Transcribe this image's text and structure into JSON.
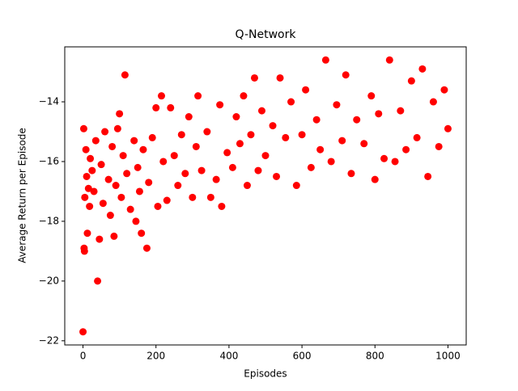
{
  "chart_data": {
    "type": "scatter",
    "title": "Q-Network",
    "x_label": "Episodes",
    "y_label": "Average Return per Episode",
    "color": "#ff0000",
    "x": [
      0,
      2,
      3,
      4,
      5,
      8,
      10,
      12,
      15,
      18,
      20,
      25,
      30,
      35,
      40,
      45,
      50,
      55,
      60,
      70,
      75,
      80,
      85,
      90,
      95,
      100,
      105,
      110,
      115,
      120,
      130,
      140,
      145,
      150,
      155,
      160,
      165,
      175,
      180,
      190,
      200,
      205,
      215,
      220,
      230,
      240,
      250,
      260,
      270,
      280,
      290,
      300,
      310,
      315,
      325,
      340,
      350,
      365,
      375,
      380,
      395,
      410,
      420,
      430,
      440,
      450,
      460,
      470,
      480,
      490,
      500,
      520,
      530,
      540,
      555,
      570,
      585,
      600,
      610,
      625,
      640,
      650,
      665,
      680,
      695,
      710,
      720,
      735,
      750,
      770,
      790,
      800,
      810,
      825,
      840,
      855,
      870,
      885,
      900,
      915,
      930,
      945,
      960,
      975,
      990,
      1000
    ],
    "y": [
      -21.7,
      -14.9,
      -18.9,
      -19.0,
      -17.2,
      -15.6,
      -16.5,
      -18.4,
      -16.9,
      -17.5,
      -15.9,
      -16.3,
      -17.0,
      -15.3,
      -20.0,
      -18.6,
      -16.1,
      -17.4,
      -15.0,
      -16.6,
      -17.8,
      -15.5,
      -18.5,
      -16.8,
      -14.9,
      -14.4,
      -17.2,
      -15.8,
      -13.1,
      -16.4,
      -17.6,
      -15.3,
      -18.0,
      -16.2,
      -17.0,
      -18.4,
      -15.6,
      -18.9,
      -16.7,
      -15.2,
      -14.2,
      -17.5,
      -13.8,
      -16.0,
      -17.3,
      -14.2,
      -15.8,
      -16.8,
      -15.1,
      -16.4,
      -14.5,
      -17.2,
      -15.5,
      -13.8,
      -16.3,
      -15.0,
      -17.2,
      -16.6,
      -14.1,
      -17.5,
      -15.7,
      -16.2,
      -14.5,
      -15.4,
      -13.8,
      -16.8,
      -15.1,
      -13.2,
      -16.3,
      -14.3,
      -15.8,
      -14.8,
      -16.5,
      -13.2,
      -15.2,
      -14.0,
      -16.8,
      -15.1,
      -13.6,
      -16.2,
      -14.6,
      -15.6,
      -12.6,
      -16.0,
      -14.1,
      -15.3,
      -13.1,
      -16.4,
      -14.6,
      -15.4,
      -13.8,
      -16.6,
      -14.4,
      -15.9,
      -12.6,
      -16.0,
      -14.3,
      -15.6,
      -13.3,
      -15.2,
      -12.9,
      -16.5,
      -14.0,
      -15.5,
      -13.6,
      -14.9
    ],
    "xlim": [
      -50,
      1050
    ],
    "ylim": [
      -22.14,
      -12.16
    ],
    "xticks": [
      0,
      200,
      400,
      600,
      800,
      1000
    ],
    "yticks": [
      {
        "value": -22,
        "label": "−22"
      },
      {
        "value": -20,
        "label": "−20"
      },
      {
        "value": -18,
        "label": "−18"
      },
      {
        "value": -16,
        "label": "−16"
      },
      {
        "value": -14,
        "label": "−14"
      }
    ]
  }
}
